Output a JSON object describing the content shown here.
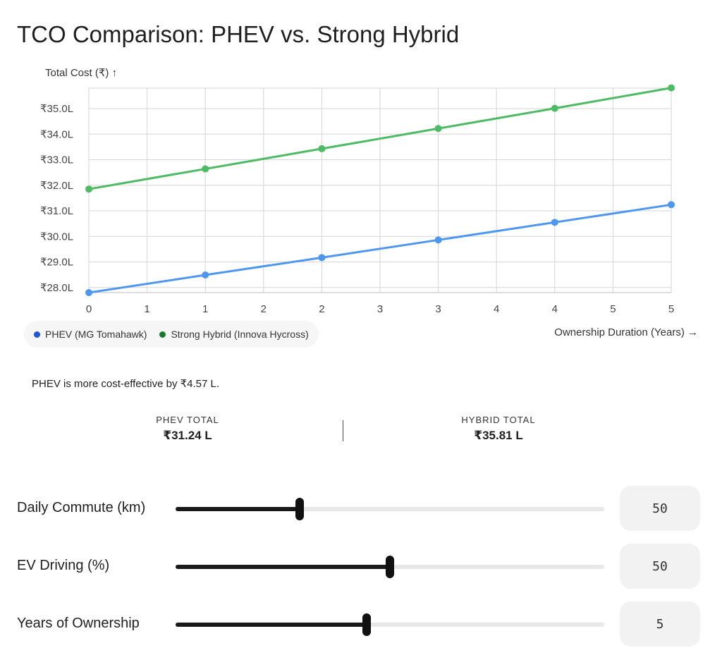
{
  "title": "TCO Comparison: PHEV vs. Strong Hybrid",
  "colors": {
    "phev": "#4e97f1",
    "hybrid": "#4cbb63",
    "phev_legend": "#1f55d6",
    "hybrid_legend": "#1b7a2c"
  },
  "chart_data": {
    "type": "line",
    "ylabel": "Total Cost (₹) ↑",
    "xlabel": "Ownership Duration (Years) →",
    "x_ticks": [
      "0",
      "1",
      "1",
      "2",
      "2",
      "3",
      "3",
      "4",
      "4",
      "5",
      "5"
    ],
    "y_ticks": [
      "₹28.0L",
      "₹29.0L",
      "₹30.0L",
      "₹31.0L",
      "₹32.0L",
      "₹33.0L",
      "₹34.0L",
      "₹35.0L"
    ],
    "xlim": [
      0,
      5
    ],
    "ylim": [
      27.8,
      35.8
    ],
    "grid": true,
    "legend_position": "bottom-left",
    "series": [
      {
        "name": "PHEV (MG Tomahawk)",
        "x": [
          0,
          1,
          2,
          3,
          4,
          5
        ],
        "values": [
          27.8,
          28.49,
          29.17,
          29.86,
          30.55,
          31.24
        ]
      },
      {
        "name": "Strong Hybrid (Innova Hycross)",
        "x": [
          0,
          1,
          2,
          3,
          4,
          5
        ],
        "values": [
          31.85,
          32.64,
          33.43,
          34.22,
          35.01,
          35.81
        ]
      }
    ]
  },
  "summary": "PHEV is more cost-effective by ₹4.57 L.",
  "totals": {
    "phev_label": "PHEV TOTAL",
    "phev_value": "₹31.24 L",
    "hybrid_label": "HYBRID TOTAL",
    "hybrid_value": "₹35.81 L"
  },
  "sliders": [
    {
      "label": "Daily Commute (km)",
      "value": "50",
      "fraction": 0.29
    },
    {
      "label": "EV Driving (%)",
      "value": "50",
      "fraction": 0.5
    },
    {
      "label": "Years of Ownership",
      "value": "5",
      "fraction": 0.445
    }
  ]
}
